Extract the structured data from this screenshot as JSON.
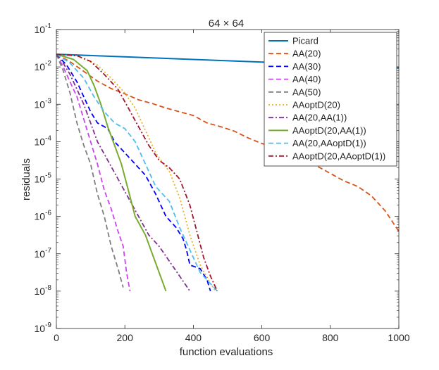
{
  "chart_data": {
    "type": "line",
    "title": "64 × 64",
    "xlabel": "function evaluations",
    "ylabel": "residuals",
    "xlim": [
      0,
      1000
    ],
    "ylim_log10": [
      -9,
      -1
    ],
    "yscale": "log",
    "grid": false,
    "legend_position": "top-right",
    "x_ticks": [
      {
        "value": 0,
        "label": "0"
      },
      {
        "value": 200,
        "label": "200"
      },
      {
        "value": 400,
        "label": "400"
      },
      {
        "value": 600,
        "label": "600"
      },
      {
        "value": 800,
        "label": "800"
      },
      {
        "value": 1000,
        "label": "1000"
      }
    ],
    "y_ticks": [
      {
        "exp": -1,
        "base": "10",
        "sup": "-1"
      },
      {
        "exp": -2,
        "base": "10",
        "sup": "-2"
      },
      {
        "exp": -3,
        "base": "10",
        "sup": "-3"
      },
      {
        "exp": -4,
        "base": "10",
        "sup": "-4"
      },
      {
        "exp": -5,
        "base": "10",
        "sup": "-5"
      },
      {
        "exp": -6,
        "base": "10",
        "sup": "-6"
      },
      {
        "exp": -7,
        "base": "10",
        "sup": "-7"
      },
      {
        "exp": -8,
        "base": "10",
        "sup": "-8"
      },
      {
        "exp": -9,
        "base": "10",
        "sup": "-9"
      }
    ],
    "series": [
      {
        "name": "Picard",
        "color": "#0072BD",
        "style": "solid",
        "width": 2,
        "points": [
          [
            0,
            -1.66
          ],
          [
            1000,
            -2.01
          ]
        ]
      },
      {
        "name": "AA(20)",
        "color": "#D95319",
        "style": "dashed",
        "width": 1.8,
        "points": [
          [
            0,
            -1.66
          ],
          [
            40,
            -1.86
          ],
          [
            80,
            -2.12
          ],
          [
            120,
            -2.38
          ],
          [
            160,
            -2.58
          ],
          [
            200,
            -2.72
          ],
          [
            240,
            -2.88
          ],
          [
            280,
            -2.98
          ],
          [
            320,
            -3.1
          ],
          [
            360,
            -3.2
          ],
          [
            400,
            -3.3
          ],
          [
            440,
            -3.5
          ],
          [
            480,
            -3.6
          ],
          [
            520,
            -3.72
          ],
          [
            560,
            -3.9
          ],
          [
            600,
            -4.05
          ],
          [
            640,
            -4.15
          ],
          [
            680,
            -4.35
          ],
          [
            720,
            -4.5
          ],
          [
            760,
            -4.65
          ],
          [
            800,
            -4.85
          ],
          [
            840,
            -5.05
          ],
          [
            880,
            -5.2
          ],
          [
            920,
            -5.45
          ],
          [
            960,
            -5.85
          ],
          [
            1000,
            -6.4
          ]
        ]
      },
      {
        "name": "AA(30)",
        "color": "#0000FF",
        "style": "dashed",
        "width": 1.8,
        "points": [
          [
            0,
            -1.66
          ],
          [
            30,
            -1.95
          ],
          [
            60,
            -2.4
          ],
          [
            80,
            -2.8
          ],
          [
            100,
            -3.2
          ],
          [
            120,
            -3.5
          ],
          [
            140,
            -3.6
          ],
          [
            150,
            -3.65
          ],
          [
            170,
            -4.0
          ],
          [
            200,
            -4.3
          ],
          [
            230,
            -4.6
          ],
          [
            260,
            -4.9
          ],
          [
            290,
            -5.4
          ],
          [
            320,
            -6.0
          ],
          [
            350,
            -6.3
          ],
          [
            370,
            -6.6
          ],
          [
            380,
            -6.9
          ],
          [
            390,
            -7.3
          ],
          [
            420,
            -7.4
          ],
          [
            440,
            -7.7
          ],
          [
            450,
            -8.0
          ]
        ]
      },
      {
        "name": "AA(40)",
        "color": "#CC44EE",
        "style": "dashed",
        "width": 1.8,
        "points": [
          [
            0,
            -1.66
          ],
          [
            20,
            -2.0
          ],
          [
            40,
            -2.4
          ],
          [
            60,
            -2.8
          ],
          [
            80,
            -3.4
          ],
          [
            100,
            -4.0
          ],
          [
            120,
            -4.6
          ],
          [
            140,
            -5.3
          ],
          [
            160,
            -5.8
          ],
          [
            180,
            -6.4
          ],
          [
            195,
            -6.8
          ],
          [
            205,
            -7.5
          ],
          [
            215,
            -8.0
          ]
        ]
      },
      {
        "name": "AA(50)",
        "color": "#7F7F7F",
        "style": "dashed",
        "width": 1.8,
        "points": [
          [
            0,
            -1.66
          ],
          [
            20,
            -2.1
          ],
          [
            40,
            -2.7
          ],
          [
            60,
            -3.5
          ],
          [
            80,
            -4.1
          ],
          [
            100,
            -4.6
          ],
          [
            120,
            -5.4
          ],
          [
            140,
            -6.0
          ],
          [
            160,
            -6.8
          ],
          [
            180,
            -7.4
          ],
          [
            195,
            -7.9
          ]
        ]
      },
      {
        "name": "AAoptD(20)",
        "color": "#EDB120",
        "style": "dotted",
        "width": 1.8,
        "points": [
          [
            0,
            -1.66
          ],
          [
            60,
            -1.7
          ],
          [
            120,
            -1.95
          ],
          [
            160,
            -2.3
          ],
          [
            200,
            -2.7
          ],
          [
            230,
            -3.1
          ],
          [
            260,
            -3.7
          ],
          [
            290,
            -4.3
          ],
          [
            330,
            -4.8
          ],
          [
            360,
            -5.5
          ],
          [
            390,
            -6.5
          ],
          [
            420,
            -7.3
          ],
          [
            450,
            -7.8
          ],
          [
            465,
            -8.0
          ]
        ]
      },
      {
        "name": "AA(20,AA(1))",
        "color": "#7E2F8E",
        "style": "dashdot",
        "width": 1.8,
        "points": [
          [
            0,
            -1.66
          ],
          [
            20,
            -1.9
          ],
          [
            40,
            -2.2
          ],
          [
            60,
            -2.6
          ],
          [
            80,
            -3.0
          ],
          [
            100,
            -3.5
          ],
          [
            120,
            -4.0
          ],
          [
            150,
            -4.5
          ],
          [
            180,
            -5.0
          ],
          [
            210,
            -5.5
          ],
          [
            240,
            -6.0
          ],
          [
            270,
            -6.5
          ],
          [
            300,
            -6.8
          ],
          [
            330,
            -7.2
          ],
          [
            360,
            -7.6
          ],
          [
            390,
            -8.0
          ]
        ]
      },
      {
        "name": "AAoptD(20,AA(1))",
        "color": "#77AC30",
        "style": "solid",
        "width": 2,
        "points": [
          [
            0,
            -1.66
          ],
          [
            50,
            -1.8
          ],
          [
            90,
            -2.1
          ],
          [
            110,
            -2.5
          ],
          [
            130,
            -3.0
          ],
          [
            150,
            -3.6
          ],
          [
            170,
            -4.1
          ],
          [
            190,
            -4.6
          ],
          [
            210,
            -5.3
          ],
          [
            230,
            -6.0
          ],
          [
            260,
            -6.5
          ],
          [
            280,
            -7.0
          ],
          [
            300,
            -7.5
          ],
          [
            320,
            -8.0
          ]
        ]
      },
      {
        "name": "AA(20,AAoptD(1))",
        "color": "#4DBEEE",
        "style": "dashed",
        "width": 1.8,
        "points": [
          [
            0,
            -1.66
          ],
          [
            40,
            -1.9
          ],
          [
            80,
            -2.3
          ],
          [
            110,
            -2.8
          ],
          [
            140,
            -3.2
          ],
          [
            170,
            -3.5
          ],
          [
            200,
            -3.65
          ],
          [
            230,
            -4.0
          ],
          [
            260,
            -4.6
          ],
          [
            290,
            -5.2
          ],
          [
            330,
            -5.6
          ],
          [
            360,
            -6.3
          ],
          [
            390,
            -6.9
          ],
          [
            420,
            -7.5
          ],
          [
            450,
            -7.8
          ],
          [
            470,
            -8.0
          ]
        ]
      },
      {
        "name": "AAoptD(20,AAoptD(1))",
        "color": "#A2142F",
        "style": "dashdot",
        "width": 1.8,
        "points": [
          [
            0,
            -1.66
          ],
          [
            60,
            -1.7
          ],
          [
            100,
            -1.85
          ],
          [
            140,
            -2.2
          ],
          [
            180,
            -2.6
          ],
          [
            210,
            -3.1
          ],
          [
            240,
            -3.6
          ],
          [
            270,
            -4.1
          ],
          [
            300,
            -4.5
          ],
          [
            330,
            -4.7
          ],
          [
            360,
            -5.0
          ],
          [
            390,
            -5.7
          ],
          [
            410,
            -6.4
          ],
          [
            430,
            -7.1
          ],
          [
            450,
            -7.6
          ],
          [
            470,
            -8.0
          ]
        ]
      }
    ]
  }
}
